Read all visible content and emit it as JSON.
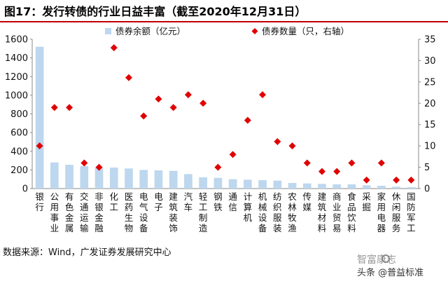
{
  "header": {
    "title": "图17：发行转债的行业日益丰富（截至2020年12月31日）"
  },
  "chart_data": {
    "type": "bar+scatter",
    "categories": [
      "银行",
      "公用事业",
      "有色金属",
      "交通运输",
      "非银金融",
      "化工",
      "医药生物",
      "电气设备",
      "电子",
      "建筑装饰",
      "汽车",
      "轻工制造",
      "钢铁",
      "通信",
      "计算机",
      "机械设备",
      "纺织服装",
      "农林牧渔",
      "传媒",
      "建筑材料",
      "商业贸易",
      "食品饮料",
      "采掘",
      "家用电器",
      "休闲服务",
      "国防军工"
    ],
    "series": [
      {
        "name": "债券余额（亿元）",
        "type": "bar",
        "axis": "left",
        "color": "#bdd7ee",
        "values": [
          1520,
          280,
          255,
          240,
          225,
          225,
          215,
          200,
          195,
          190,
          155,
          120,
          115,
          100,
          95,
          90,
          85,
          60,
          55,
          50,
          45,
          45,
          35,
          30,
          20,
          15
        ]
      },
      {
        "name": "债券数量（只，右轴）",
        "type": "scatter",
        "axis": "right",
        "color": "#e00000",
        "values": [
          10,
          19,
          19,
          6,
          5,
          33,
          26,
          17,
          21,
          19,
          22,
          20,
          5,
          8,
          16,
          22,
          11,
          10,
          6,
          4,
          4,
          6,
          2,
          6,
          2,
          2
        ]
      }
    ],
    "y_left": {
      "min": 0,
      "max": 1600,
      "ticks": [
        "0",
        "200",
        "400",
        "600",
        "800",
        "1000",
        "1200",
        "1400",
        "1600"
      ]
    },
    "y_right": {
      "min": 0,
      "max": 35,
      "ticks": [
        "0",
        "5",
        "10",
        "15",
        "20",
        "25",
        "30",
        "35"
      ]
    },
    "legend_position": "top",
    "grid": false
  },
  "source": "数据来源：Wind，广发证券发展研究中心",
  "watermark": {
    "line1": "智富康志",
    "line2": "头条 @普益标准"
  }
}
